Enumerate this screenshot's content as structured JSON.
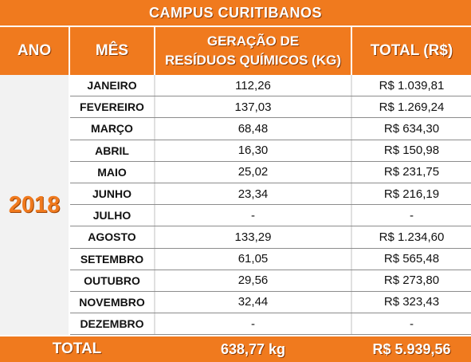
{
  "title": "CAMPUS CURITIBANOS",
  "headers": {
    "ano": "ANO",
    "mes": "MÊS",
    "geracao_line1": "GERAÇÃO DE",
    "geracao_line2": "RESÍDUOS QUÍMICOS (KG)",
    "total": "TOTAL (R$)"
  },
  "year": "2018",
  "rows": [
    {
      "mes": "JANEIRO",
      "kg": "112,26",
      "valor": "R$ 1.039,81"
    },
    {
      "mes": "FEVEREIRO",
      "kg": "137,03",
      "valor": "R$ 1.269,24"
    },
    {
      "mes": "MARÇO",
      "kg": "68,48",
      "valor": "R$ 634,30"
    },
    {
      "mes": "ABRIL",
      "kg": "16,30",
      "valor": "R$ 150,98"
    },
    {
      "mes": "MAIO",
      "kg": "25,02",
      "valor": "R$ 231,75"
    },
    {
      "mes": "JUNHO",
      "kg": "23,34",
      "valor": "R$ 216,19"
    },
    {
      "mes": "JULHO",
      "kg": "-",
      "valor": "-"
    },
    {
      "mes": "AGOSTO",
      "kg": "133,29",
      "valor": "R$ 1.234,60"
    },
    {
      "mes": "SETEMBRO",
      "kg": "61,05",
      "valor": "R$ 565,48"
    },
    {
      "mes": "OUTUBRO",
      "kg": "29,56",
      "valor": "R$ 273,80"
    },
    {
      "mes": "NOVEMBRO",
      "kg": "32,44",
      "valor": "R$ 323,43"
    },
    {
      "mes": "DEZEMBRO",
      "kg": "-",
      "valor": "-"
    }
  ],
  "total": {
    "label": "TOTAL",
    "kg": "638,77 kg",
    "valor": "R$ 5.939,56"
  },
  "colors": {
    "accent": "#f07a1e",
    "year_column_bg": "#f2f2f2",
    "row_border": "#8c8c8c"
  }
}
